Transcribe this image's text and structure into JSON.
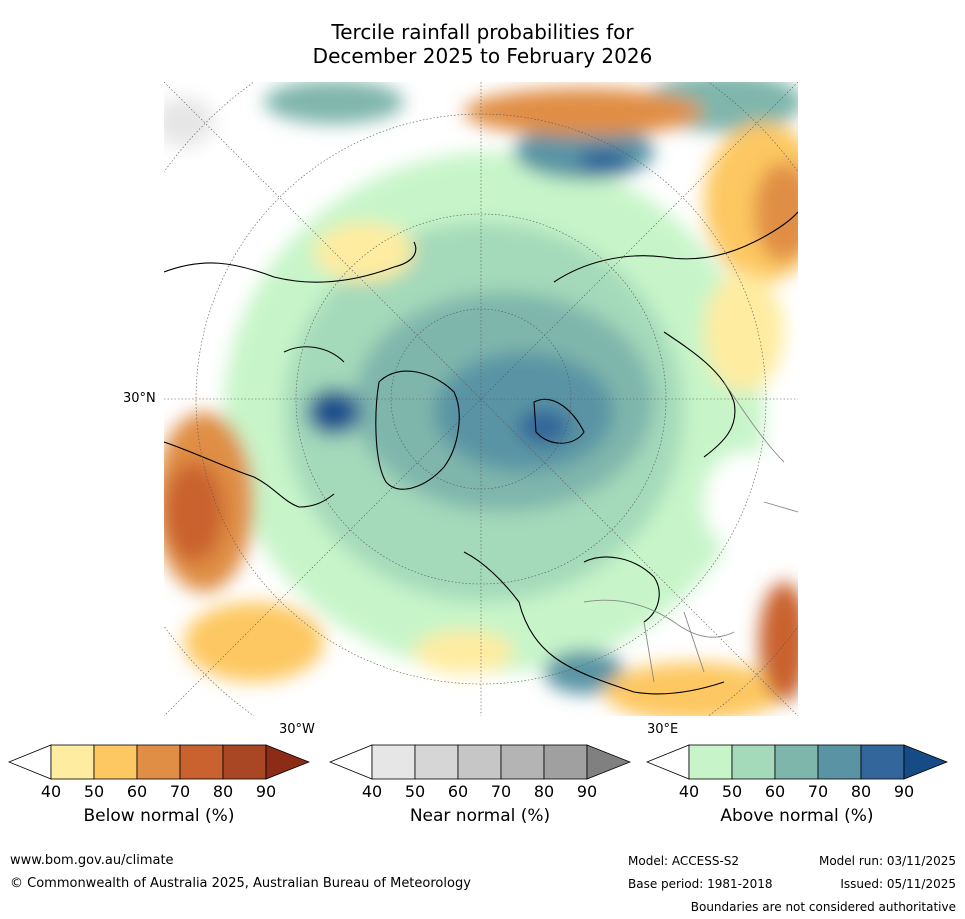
{
  "title_line1": "Tercile rainfall probabilities for",
  "title_line2": "December 2025 to February 2026",
  "map": {
    "lat_label": "30°N",
    "lon_left": "30°W",
    "lon_right": "30°E"
  },
  "colorbars": [
    {
      "label": "Below normal (%)",
      "ticks": [
        "40",
        "50",
        "60",
        "70",
        "80",
        "90"
      ],
      "colors": [
        "#ffffff",
        "#feeca0",
        "#fdc862",
        "#e08e45",
        "#c9622e",
        "#a94725",
        "#8c2c17"
      ]
    },
    {
      "label": "Near normal (%)",
      "ticks": [
        "40",
        "50",
        "60",
        "70",
        "80",
        "90"
      ],
      "colors": [
        "#ffffff",
        "#e6e6e6",
        "#d6d6d6",
        "#c6c6c6",
        "#b4b4b4",
        "#a0a0a0",
        "#808080"
      ]
    },
    {
      "label": "Above normal (%)",
      "ticks": [
        "40",
        "50",
        "60",
        "70",
        "80",
        "90"
      ],
      "colors": [
        "#ffffff",
        "#c7f5c9",
        "#a4d9ba",
        "#7fb6ac",
        "#5a94a4",
        "#33669a",
        "#164b86"
      ]
    }
  ],
  "footer": {
    "website": "www.bom.gov.au/climate",
    "copyright": "© Commonwealth of Australia 2025, Australian Bureau of Meteorology",
    "model": "Model: ACCESS-S2",
    "base_period": "Base period: 1981-2018",
    "model_run": "Model run: 03/11/2025",
    "issued": "Issued: 05/11/2025",
    "disclaimer": "Boundaries are not considered authoritative"
  }
}
